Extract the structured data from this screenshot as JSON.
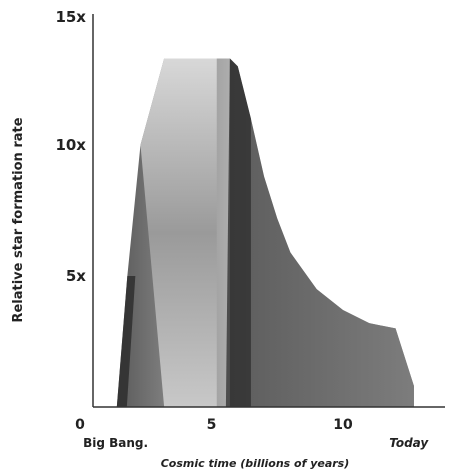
{
  "chart_data": {
    "type": "area",
    "title": "",
    "xlabel": "Cosmic time (billions of years)",
    "ylabel": "Relative star formation rate",
    "xlim": [
      0,
      13.5
    ],
    "ylim": [
      0,
      15
    ],
    "x_ticks": [
      {
        "value": 0,
        "label": "0"
      },
      {
        "value": 5,
        "label": "5"
      },
      {
        "value": 10,
        "label": "10"
      }
    ],
    "y_ticks": [
      {
        "value": 5,
        "label": "5x"
      },
      {
        "value": 10,
        "label": "10x"
      },
      {
        "value": 15,
        "label": "15x"
      }
    ],
    "annotations": [
      {
        "x": 1.2,
        "label": "Big Bang."
      },
      {
        "x": 12.5,
        "label": "Today"
      }
    ],
    "grid": false,
    "series": [
      {
        "x": [
          1.4,
          1.8,
          2.3,
          3.2,
          5.7,
          6.0,
          6.5,
          7.0,
          7.5,
          8.0,
          9.0,
          10.0,
          11.0,
          12.0,
          12.7
        ],
        "values": [
          0,
          5.0,
          10.0,
          13.3,
          13.3,
          13.0,
          11.0,
          8.8,
          7.2,
          5.9,
          4.5,
          3.7,
          3.2,
          3.0,
          0.8
        ]
      }
    ]
  },
  "colors": {
    "axis": "#333333",
    "text": "#222222",
    "light": "#e4e4e4",
    "mid": "#8a8a8a",
    "dark": "#2e2e2e"
  }
}
